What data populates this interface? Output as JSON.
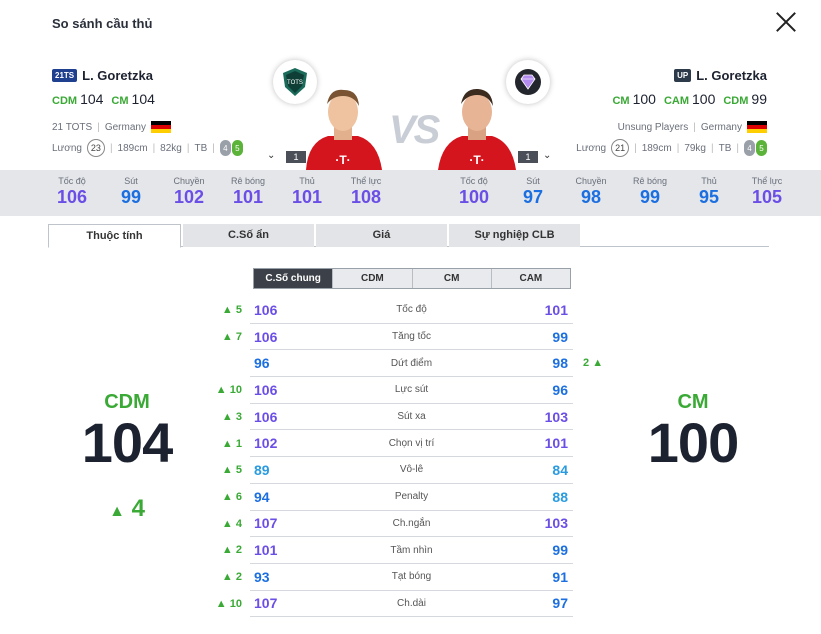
{
  "title": "So sánh cầu thủ",
  "left_player": {
    "season": "21TS",
    "season_color": "#1f3f8f",
    "name": "L. Goretzka",
    "positions": [
      {
        "pos": "CDM",
        "ovr": "104"
      },
      {
        "pos": "CM",
        "ovr": "104"
      }
    ],
    "team": "21 TOTS",
    "nation": "Germany",
    "wage_label": "Lương",
    "wage": "23",
    "height": "189cm",
    "weight": "82kg",
    "body": "TB",
    "weak_foot": "4",
    "skill": "5",
    "level": "1",
    "crest_label": "TOTS",
    "stats": [
      {
        "label": "Tốc độ",
        "value": "106",
        "color": "#6b4ee6"
      },
      {
        "label": "Sút",
        "value": "99",
        "color": "#1c6fe0"
      },
      {
        "label": "Chuyền",
        "value": "102",
        "color": "#6b4ee6"
      },
      {
        "label": "Rê bóng",
        "value": "101",
        "color": "#6b4ee6"
      },
      {
        "label": "Thủ",
        "value": "101",
        "color": "#6b4ee6"
      },
      {
        "label": "Thể lực",
        "value": "108",
        "color": "#6b4ee6"
      }
    ],
    "big_pos": "CDM",
    "big_ovr": "104",
    "big_diff": "4"
  },
  "right_player": {
    "season": "UP",
    "season_color": "#2d3a4a",
    "name": "L. Goretzka",
    "positions": [
      {
        "pos": "CM",
        "ovr": "100"
      },
      {
        "pos": "CAM",
        "ovr": "100"
      },
      {
        "pos": "CDM",
        "ovr": "99"
      }
    ],
    "team": "Unsung Players",
    "nation": "Germany",
    "wage_label": "Lương",
    "wage": "21",
    "height": "189cm",
    "weight": "79kg",
    "body": "TB",
    "weak_foot": "4",
    "skill": "5",
    "level": "1",
    "stats": [
      {
        "label": "Tốc độ",
        "value": "100",
        "color": "#6b4ee6"
      },
      {
        "label": "Sút",
        "value": "97",
        "color": "#1c6fe0"
      },
      {
        "label": "Chuyền",
        "value": "98",
        "color": "#1c6fe0"
      },
      {
        "label": "Rê bóng",
        "value": "99",
        "color": "#1c6fe0"
      },
      {
        "label": "Thủ",
        "value": "95",
        "color": "#1c6fe0"
      },
      {
        "label": "Thể lực",
        "value": "105",
        "color": "#6b4ee6"
      }
    ],
    "big_pos": "CM",
    "big_ovr": "100"
  },
  "vs": "VS",
  "tabs": [
    "Thuộc tính",
    "C.Số ẩn",
    "Giá",
    "Sự nghiệp CLB"
  ],
  "subtabs": [
    "C.Số chung",
    "CDM",
    "CM",
    "CAM"
  ],
  "attributes": [
    {
      "name": "Tốc độ",
      "left": "106",
      "right": "101",
      "left_color": "#6b4ee6",
      "right_color": "#6b4ee6",
      "diff_left": "5",
      "diff_right": ""
    },
    {
      "name": "Tăng tốc",
      "left": "106",
      "right": "99",
      "left_color": "#6b4ee6",
      "right_color": "#1c6fe0",
      "diff_left": "7",
      "diff_right": ""
    },
    {
      "name": "Dứt điểm",
      "left": "96",
      "right": "98",
      "left_color": "#1c6fe0",
      "right_color": "#1c6fe0",
      "diff_left": "",
      "diff_right": "2"
    },
    {
      "name": "Lực sút",
      "left": "106",
      "right": "96",
      "left_color": "#6b4ee6",
      "right_color": "#1c6fe0",
      "diff_left": "10",
      "diff_right": ""
    },
    {
      "name": "Sút xa",
      "left": "106",
      "right": "103",
      "left_color": "#6b4ee6",
      "right_color": "#6b4ee6",
      "diff_left": "3",
      "diff_right": ""
    },
    {
      "name": "Chọn vị trí",
      "left": "102",
      "right": "101",
      "left_color": "#6b4ee6",
      "right_color": "#6b4ee6",
      "diff_left": "1",
      "diff_right": ""
    },
    {
      "name": "Vô-lê",
      "left": "89",
      "right": "84",
      "left_color": "#2a9be0",
      "right_color": "#2a9be0",
      "diff_left": "5",
      "diff_right": ""
    },
    {
      "name": "Penalty",
      "left": "94",
      "right": "88",
      "left_color": "#1c6fe0",
      "right_color": "#2a9be0",
      "diff_left": "6",
      "diff_right": ""
    },
    {
      "name": "Ch.ngắn",
      "left": "107",
      "right": "103",
      "left_color": "#6b4ee6",
      "right_color": "#6b4ee6",
      "diff_left": "4",
      "diff_right": ""
    },
    {
      "name": "Tầm nhìn",
      "left": "101",
      "right": "99",
      "left_color": "#6b4ee6",
      "right_color": "#1c6fe0",
      "diff_left": "2",
      "diff_right": ""
    },
    {
      "name": "Tạt bóng",
      "left": "93",
      "right": "91",
      "left_color": "#1c6fe0",
      "right_color": "#1c6fe0",
      "diff_left": "2",
      "diff_right": ""
    },
    {
      "name": "Ch.dài",
      "left": "107",
      "right": "97",
      "left_color": "#6b4ee6",
      "right_color": "#1c6fe0",
      "diff_left": "10",
      "diff_right": ""
    }
  ]
}
